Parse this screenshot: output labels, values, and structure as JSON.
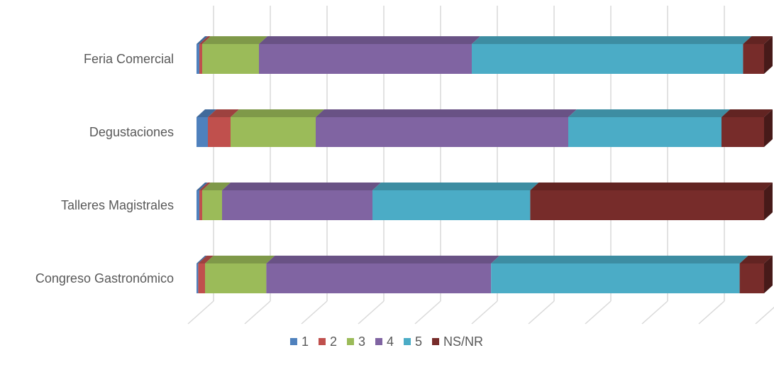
{
  "chart_data": {
    "type": "bar",
    "orientation": "horizontal",
    "stacked": "percent",
    "style": "3d",
    "categories": [
      "Feria Comercial",
      "Degustaciones",
      "Talleres Magistrales",
      "Congreso Gastronómico"
    ],
    "series": [
      {
        "name": "1",
        "color": "#4F81BD",
        "values": [
          0.5,
          2.0,
          0.5,
          0.3
        ]
      },
      {
        "name": "2",
        "color": "#C0504D",
        "values": [
          0.5,
          4.0,
          0.5,
          1.2
        ]
      },
      {
        "name": "3",
        "color": "#9BBB59",
        "values": [
          10.0,
          15.0,
          3.5,
          10.8
        ]
      },
      {
        "name": "4",
        "color": "#8064A2",
        "values": [
          37.5,
          44.5,
          26.5,
          39.6
        ]
      },
      {
        "name": "5",
        "color": "#4BACC6",
        "values": [
          47.8,
          27.0,
          27.8,
          43.8
        ]
      },
      {
        "name": "NS/NR",
        "color": "#772C2A",
        "values": [
          3.7,
          7.5,
          41.2,
          4.3
        ]
      }
    ],
    "xlim": [
      0,
      100
    ],
    "grid": true,
    "legend": "bottom"
  }
}
